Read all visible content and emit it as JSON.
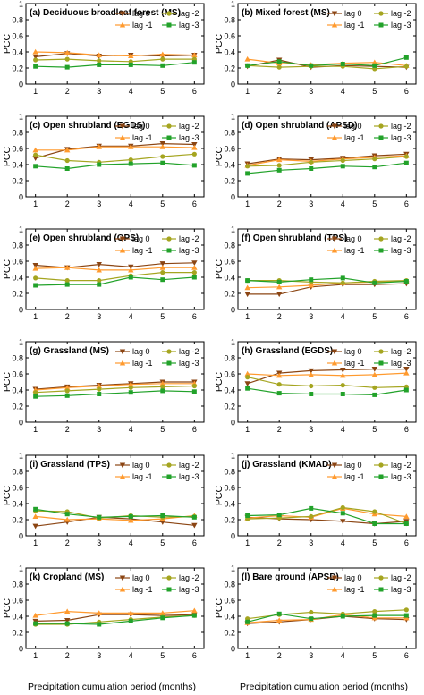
{
  "figure": {
    "xlabel": "Precipitation cumulation period (months)",
    "ylabel": "PCC"
  },
  "chart_data": [
    {
      "type": "line",
      "title": "(a) Deciduous broadleaf forest (MS)",
      "x": [
        1,
        2,
        3,
        4,
        5,
        6
      ],
      "ylim": [
        0,
        1.0
      ],
      "yticks": [
        0,
        0.2,
        0.4,
        0.6,
        0.8,
        1.0
      ],
      "legend": "top-right",
      "series": [
        {
          "name": "lag 0",
          "color": "#8B4513",
          "marker": "triangle-down",
          "values": [
            0.34,
            0.38,
            0.35,
            0.36,
            0.35,
            0.36
          ]
        },
        {
          "name": "lag -1",
          "color": "#FF9A2E",
          "marker": "triangle-up",
          "values": [
            0.4,
            0.39,
            0.36,
            0.35,
            0.37,
            0.36
          ]
        },
        {
          "name": "lag -2",
          "color": "#A5A520",
          "marker": "circle",
          "values": [
            0.3,
            0.31,
            0.29,
            0.28,
            0.31,
            0.31
          ]
        },
        {
          "name": "lag -3",
          "color": "#22A22A",
          "marker": "square",
          "values": [
            0.22,
            0.21,
            0.24,
            0.24,
            0.23,
            0.27
          ]
        }
      ]
    },
    {
      "type": "line",
      "title": "(b) Mixed forest (MS)",
      "x": [
        1,
        2,
        3,
        4,
        5,
        6
      ],
      "ylim": [
        0,
        1.0
      ],
      "yticks": [
        0,
        0.2,
        0.4,
        0.6,
        0.8,
        1.0
      ],
      "legend": "top-right",
      "series": [
        {
          "name": "lag 0",
          "color": "#8B4513",
          "marker": "triangle-down",
          "values": [
            0.22,
            0.3,
            0.21,
            0.23,
            0.22,
            0.21
          ]
        },
        {
          "name": "lag -1",
          "color": "#FF9A2E",
          "marker": "triangle-up",
          "values": [
            0.31,
            0.26,
            0.24,
            0.26,
            0.27,
            0.23
          ]
        },
        {
          "name": "lag -2",
          "color": "#A5A520",
          "marker": "circle",
          "values": [
            0.23,
            0.21,
            0.22,
            0.22,
            0.19,
            0.22
          ]
        },
        {
          "name": "lag -3",
          "color": "#22A22A",
          "marker": "square",
          "values": [
            0.23,
            0.28,
            0.23,
            0.25,
            0.23,
            0.33
          ]
        }
      ]
    },
    {
      "type": "line",
      "title": "(c) Open shrubland (EGDS)",
      "x": [
        1,
        2,
        3,
        4,
        5,
        6
      ],
      "ylim": [
        0,
        1.0
      ],
      "yticks": [
        0,
        0.2,
        0.4,
        0.6,
        0.8,
        1.0
      ],
      "legend": "top-right",
      "series": [
        {
          "name": "lag 0",
          "color": "#8B4513",
          "marker": "triangle-down",
          "values": [
            0.48,
            0.59,
            0.63,
            0.63,
            0.66,
            0.65
          ]
        },
        {
          "name": "lag -1",
          "color": "#FF9A2E",
          "marker": "triangle-up",
          "values": [
            0.58,
            0.58,
            0.62,
            0.62,
            0.62,
            0.61
          ]
        },
        {
          "name": "lag -2",
          "color": "#A5A520",
          "marker": "circle",
          "values": [
            0.52,
            0.45,
            0.43,
            0.46,
            0.5,
            0.53
          ]
        },
        {
          "name": "lag -3",
          "color": "#22A22A",
          "marker": "square",
          "values": [
            0.38,
            0.35,
            0.4,
            0.41,
            0.42,
            0.39
          ]
        }
      ]
    },
    {
      "type": "line",
      "title": "(d) Open shrubland (APSD)",
      "x": [
        1,
        2,
        3,
        4,
        5,
        6
      ],
      "ylim": [
        0,
        1.0
      ],
      "yticks": [
        0,
        0.2,
        0.4,
        0.6,
        0.8,
        1.0
      ],
      "legend": "top-right",
      "series": [
        {
          "name": "lag 0",
          "color": "#8B4513",
          "marker": "triangle-down",
          "values": [
            0.41,
            0.47,
            0.46,
            0.48,
            0.51,
            0.53
          ]
        },
        {
          "name": "lag -1",
          "color": "#FF9A2E",
          "marker": "triangle-up",
          "values": [
            0.39,
            0.46,
            0.44,
            0.47,
            0.49,
            0.51
          ]
        },
        {
          "name": "lag -2",
          "color": "#A5A520",
          "marker": "circle",
          "values": [
            0.38,
            0.39,
            0.43,
            0.45,
            0.47,
            0.5
          ]
        },
        {
          "name": "lag -3",
          "color": "#22A22A",
          "marker": "square",
          "values": [
            0.29,
            0.33,
            0.35,
            0.38,
            0.37,
            0.42
          ]
        }
      ]
    },
    {
      "type": "line",
      "title": "(e) Open shrubland (OPS)",
      "x": [
        1,
        2,
        3,
        4,
        5,
        6
      ],
      "ylim": [
        0,
        1.0
      ],
      "yticks": [
        0,
        0.2,
        0.4,
        0.6,
        0.8,
        1.0
      ],
      "legend": "top-right",
      "series": [
        {
          "name": "lag 0",
          "color": "#8B4513",
          "marker": "triangle-down",
          "values": [
            0.55,
            0.52,
            0.56,
            0.53,
            0.57,
            0.58
          ]
        },
        {
          "name": "lag -1",
          "color": "#FF9A2E",
          "marker": "triangle-up",
          "values": [
            0.51,
            0.52,
            0.49,
            0.49,
            0.52,
            0.52
          ]
        },
        {
          "name": "lag -2",
          "color": "#A5A520",
          "marker": "circle",
          "values": [
            0.39,
            0.36,
            0.36,
            0.42,
            0.46,
            0.46
          ]
        },
        {
          "name": "lag -3",
          "color": "#22A22A",
          "marker": "square",
          "values": [
            0.3,
            0.31,
            0.31,
            0.4,
            0.37,
            0.4
          ]
        }
      ]
    },
    {
      "type": "line",
      "title": "(f) Open shrubland (TPS)",
      "x": [
        1,
        2,
        3,
        4,
        5,
        6
      ],
      "ylim": [
        0,
        1.0
      ],
      "yticks": [
        0,
        0.2,
        0.4,
        0.6,
        0.8,
        1.0
      ],
      "legend": "top-right",
      "series": [
        {
          "name": "lag 0",
          "color": "#8B4513",
          "marker": "triangle-down",
          "values": [
            0.19,
            0.19,
            0.28,
            0.31,
            0.31,
            0.32
          ]
        },
        {
          "name": "lag -1",
          "color": "#FF9A2E",
          "marker": "triangle-up",
          "values": [
            0.27,
            0.28,
            0.3,
            0.33,
            0.34,
            0.35
          ]
        },
        {
          "name": "lag -2",
          "color": "#A5A520",
          "marker": "circle",
          "values": [
            0.36,
            0.36,
            0.34,
            0.33,
            0.35,
            0.36
          ]
        },
        {
          "name": "lag -3",
          "color": "#22A22A",
          "marker": "square",
          "values": [
            0.36,
            0.34,
            0.37,
            0.39,
            0.33,
            0.35
          ]
        }
      ]
    },
    {
      "type": "line",
      "title": "(g) Grassland (MS)",
      "x": [
        1,
        2,
        3,
        4,
        5,
        6
      ],
      "ylim": [
        0,
        1.0
      ],
      "yticks": [
        0,
        0.2,
        0.4,
        0.6,
        0.8,
        1.0
      ],
      "legend": "top-right",
      "series": [
        {
          "name": "lag 0",
          "color": "#8B4513",
          "marker": "triangle-down",
          "values": [
            0.41,
            0.44,
            0.46,
            0.48,
            0.5,
            0.5
          ]
        },
        {
          "name": "lag -1",
          "color": "#FF9A2E",
          "marker": "triangle-up",
          "values": [
            0.4,
            0.43,
            0.45,
            0.47,
            0.48,
            0.48
          ]
        },
        {
          "name": "lag -2",
          "color": "#A5A520",
          "marker": "circle",
          "values": [
            0.37,
            0.39,
            0.41,
            0.43,
            0.44,
            0.45
          ]
        },
        {
          "name": "lag -3",
          "color": "#22A22A",
          "marker": "square",
          "values": [
            0.32,
            0.33,
            0.35,
            0.37,
            0.39,
            0.38
          ]
        }
      ]
    },
    {
      "type": "line",
      "title": "(h) Grassland (EGDS)",
      "x": [
        1,
        2,
        3,
        4,
        5,
        6
      ],
      "ylim": [
        0,
        1.0
      ],
      "yticks": [
        0,
        0.2,
        0.4,
        0.6,
        0.8,
        1.0
      ],
      "legend": "top-right",
      "series": [
        {
          "name": "lag 0",
          "color": "#8B4513",
          "marker": "triangle-down",
          "values": [
            0.48,
            0.61,
            0.64,
            0.65,
            0.66,
            0.66
          ]
        },
        {
          "name": "lag -1",
          "color": "#FF9A2E",
          "marker": "triangle-up",
          "values": [
            0.6,
            0.58,
            0.59,
            0.58,
            0.59,
            0.61
          ]
        },
        {
          "name": "lag -2",
          "color": "#A5A520",
          "marker": "circle",
          "values": [
            0.56,
            0.47,
            0.45,
            0.46,
            0.43,
            0.44
          ]
        },
        {
          "name": "lag -3",
          "color": "#22A22A",
          "marker": "square",
          "values": [
            0.42,
            0.36,
            0.35,
            0.35,
            0.34,
            0.4
          ]
        }
      ]
    },
    {
      "type": "line",
      "title": "(i) Grassland (TPS)",
      "x": [
        1,
        2,
        3,
        4,
        5,
        6
      ],
      "ylim": [
        0,
        1.0
      ],
      "yticks": [
        0,
        0.2,
        0.4,
        0.6,
        0.8,
        1.0
      ],
      "legend": "top-right",
      "series": [
        {
          "name": "lag 0",
          "color": "#8B4513",
          "marker": "triangle-down",
          "values": [
            0.12,
            0.17,
            0.23,
            0.21,
            0.17,
            0.13
          ]
        },
        {
          "name": "lag -1",
          "color": "#FF9A2E",
          "marker": "triangle-up",
          "values": [
            0.24,
            0.2,
            0.21,
            0.19,
            0.21,
            0.25
          ]
        },
        {
          "name": "lag -2",
          "color": "#A5A520",
          "marker": "circle",
          "values": [
            0.31,
            0.3,
            0.22,
            0.25,
            0.23,
            0.24
          ]
        },
        {
          "name": "lag -3",
          "color": "#22A22A",
          "marker": "square",
          "values": [
            0.33,
            0.27,
            0.23,
            0.24,
            0.25,
            0.23
          ]
        }
      ]
    },
    {
      "type": "line",
      "title": "(j) Grassland (KMAD)",
      "x": [
        1,
        2,
        3,
        4,
        5,
        6
      ],
      "ylim": [
        0,
        1.0
      ],
      "yticks": [
        0,
        0.2,
        0.4,
        0.6,
        0.8,
        1.0
      ],
      "legend": "top-right",
      "series": [
        {
          "name": "lag 0",
          "color": "#8B4513",
          "marker": "triangle-down",
          "values": [
            0.23,
            0.21,
            0.2,
            0.18,
            0.15,
            0.18
          ]
        },
        {
          "name": "lag -1",
          "color": "#FF9A2E",
          "marker": "triangle-up",
          "values": [
            0.22,
            0.25,
            0.23,
            0.34,
            0.27,
            0.24
          ]
        },
        {
          "name": "lag -2",
          "color": "#A5A520",
          "marker": "circle",
          "values": [
            0.21,
            0.22,
            0.24,
            0.35,
            0.3,
            0.15
          ]
        },
        {
          "name": "lag -3",
          "color": "#22A22A",
          "marker": "square",
          "values": [
            0.25,
            0.26,
            0.34,
            0.28,
            0.15,
            0.15
          ]
        }
      ]
    },
    {
      "type": "line",
      "title": "(k) Cropland (MS)",
      "x": [
        1,
        2,
        3,
        4,
        5,
        6
      ],
      "ylim": [
        0,
        1.0
      ],
      "yticks": [
        0,
        0.2,
        0.4,
        0.6,
        0.8,
        1.0
      ],
      "legend": "top-right",
      "series": [
        {
          "name": "lag 0",
          "color": "#8B4513",
          "marker": "triangle-down",
          "values": [
            0.34,
            0.35,
            0.42,
            0.42,
            0.41,
            0.42
          ]
        },
        {
          "name": "lag -1",
          "color": "#FF9A2E",
          "marker": "triangle-up",
          "values": [
            0.41,
            0.46,
            0.44,
            0.44,
            0.44,
            0.47
          ]
        },
        {
          "name": "lag -2",
          "color": "#A5A520",
          "marker": "circle",
          "values": [
            0.3,
            0.3,
            0.33,
            0.36,
            0.39,
            0.41
          ]
        },
        {
          "name": "lag -3",
          "color": "#22A22A",
          "marker": "square",
          "values": [
            0.31,
            0.31,
            0.3,
            0.34,
            0.38,
            0.41
          ]
        }
      ]
    },
    {
      "type": "line",
      "title": "(l) Bare ground (APSD)",
      "x": [
        1,
        2,
        3,
        4,
        5,
        6
      ],
      "ylim": [
        0,
        1.0
      ],
      "yticks": [
        0,
        0.2,
        0.4,
        0.6,
        0.8,
        1.0
      ],
      "legend": "top-right",
      "series": [
        {
          "name": "lag 0",
          "color": "#8B4513",
          "marker": "triangle-down",
          "values": [
            0.31,
            0.33,
            0.36,
            0.4,
            0.37,
            0.36
          ]
        },
        {
          "name": "lag -1",
          "color": "#FF9A2E",
          "marker": "triangle-up",
          "values": [
            0.32,
            0.35,
            0.36,
            0.42,
            0.38,
            0.38
          ]
        },
        {
          "name": "lag -2",
          "color": "#A5A520",
          "marker": "circle",
          "values": [
            0.37,
            0.42,
            0.45,
            0.43,
            0.46,
            0.48
          ]
        },
        {
          "name": "lag -3",
          "color": "#22A22A",
          "marker": "square",
          "values": [
            0.33,
            0.43,
            0.37,
            0.4,
            0.41,
            0.41
          ]
        }
      ]
    }
  ]
}
